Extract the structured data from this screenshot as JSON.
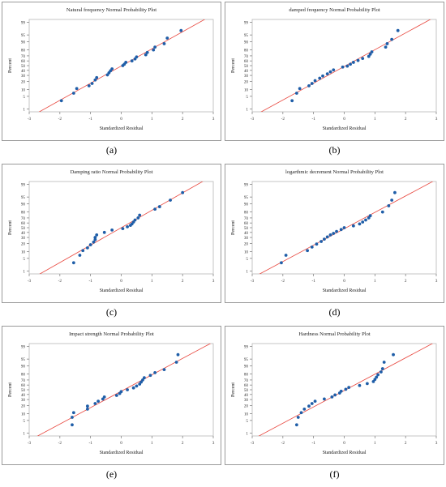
{
  "chart_data": [
    {
      "type": "scatter",
      "label": "(a)",
      "title": "Natural frequency Normal Probability Plot",
      "xlabel": "Standardized Residual",
      "ylabel": "Percent",
      "xticks": [
        "-3",
        "-2",
        "-1",
        "0",
        "1",
        "2",
        "3"
      ],
      "yticks": [
        "1",
        "5",
        "10",
        "20",
        "30",
        "40",
        "50",
        "60",
        "70",
        "80",
        "90",
        "95",
        "99"
      ],
      "x": [
        -1.95,
        -1.55,
        -1.45,
        -1.05,
        -0.95,
        -0.85,
        -0.8,
        -0.45,
        -0.4,
        -0.35,
        -0.3,
        0.05,
        0.1,
        0.15,
        0.35,
        0.45,
        0.5,
        0.8,
        0.85,
        1.05,
        1.1,
        1.4,
        1.5,
        1.95
      ],
      "y": [
        3,
        7,
        11,
        14,
        17,
        22,
        26,
        31,
        35,
        39,
        43,
        50,
        53,
        57,
        60,
        64,
        68,
        72,
        76,
        80,
        84,
        88,
        93,
        97
      ]
    },
    {
      "type": "scatter",
      "label": "(b)",
      "title": "damped frequency Normal Probability Plot",
      "xlabel": "Standardized Residual",
      "ylabel": "Percent",
      "xticks": [
        "-3",
        "-2",
        "-1",
        "0",
        "1",
        "2",
        "3"
      ],
      "yticks": [
        "1",
        "5",
        "10",
        "20",
        "30",
        "40",
        "50",
        "60",
        "70",
        "80",
        "90",
        "95",
        "99"
      ],
      "x": [
        -1.7,
        -1.55,
        -1.45,
        -1.15,
        -1.05,
        -0.95,
        -0.8,
        -0.7,
        -0.55,
        -0.45,
        -0.35,
        -0.05,
        0.1,
        0.2,
        0.3,
        0.45,
        0.6,
        0.8,
        0.85,
        0.9,
        1.35,
        1.4,
        1.55,
        1.75
      ],
      "y": [
        3,
        7,
        11,
        14,
        17,
        21,
        25,
        29,
        33,
        37,
        41,
        47,
        49,
        53,
        57,
        61,
        65,
        69,
        73,
        77,
        84,
        88,
        92,
        97
      ]
    },
    {
      "type": "scatter",
      "label": "(c)",
      "title": "Damping ratio Normal Probability Plot",
      "xlabel": "Standardized Residual",
      "ylabel": "Percent",
      "xticks": [
        "-3",
        "-2",
        "-1",
        "0",
        "1",
        "2",
        "3"
      ],
      "yticks": [
        "1",
        "5",
        "10",
        "20",
        "30",
        "40",
        "50",
        "60",
        "70",
        "80",
        "90",
        "95",
        "99"
      ],
      "x": [
        -1.55,
        -1.35,
        -1.25,
        -1.1,
        -1.0,
        -0.9,
        -0.85,
        -0.85,
        -0.8,
        -0.55,
        -0.3,
        0.05,
        0.2,
        0.3,
        0.35,
        0.4,
        0.45,
        0.55,
        0.6,
        1.1,
        1.25,
        1.6,
        2.0
      ],
      "y": [
        3,
        7,
        11,
        14,
        18,
        22,
        26,
        30,
        35,
        40,
        45,
        48,
        52,
        55,
        58,
        62,
        66,
        70,
        75,
        84,
        87,
        93,
        97
      ]
    },
    {
      "type": "scatter",
      "label": "(d)",
      "title": "logarthmic decrement Normal Probability Plot",
      "xlabel": "Standardized Residual",
      "ylabel": "Percent",
      "xticks": [
        "-3",
        "-2",
        "-1",
        "0",
        "1",
        "2",
        "3"
      ],
      "yticks": [
        "1",
        "5",
        "10",
        "20",
        "30",
        "40",
        "50",
        "60",
        "70",
        "80",
        "90",
        "95",
        "99"
      ],
      "x": [
        -2.05,
        -1.9,
        -1.2,
        -1.05,
        -0.9,
        -0.75,
        -0.65,
        -0.55,
        -0.45,
        -0.35,
        -0.25,
        -0.1,
        0.0,
        0.3,
        0.5,
        0.6,
        0.7,
        0.8,
        0.85,
        1.25,
        1.45,
        1.55,
        1.65
      ],
      "y": [
        3,
        7,
        11,
        15,
        19,
        23,
        27,
        31,
        35,
        38,
        42,
        46,
        50,
        54,
        58,
        62,
        66,
        70,
        74,
        80,
        88,
        93,
        97
      ]
    },
    {
      "type": "scatter",
      "label": "(e)",
      "title": "Impact strength Normal Probability Plot",
      "xlabel": "Standardized Residual",
      "ylabel": "Percent",
      "xticks": [
        "-3",
        "-2",
        "-1",
        "0",
        "1",
        "2",
        "3"
      ],
      "yticks": [
        "1",
        "5",
        "10",
        "20",
        "30",
        "40",
        "50",
        "60",
        "70",
        "80",
        "90",
        "95",
        "99"
      ],
      "x": [
        -1.6,
        -1.6,
        -1.55,
        -1.1,
        -1.1,
        -0.85,
        -0.75,
        -0.6,
        -0.55,
        -0.15,
        -0.05,
        0.0,
        0.2,
        0.4,
        0.5,
        0.6,
        0.65,
        0.7,
        0.75,
        0.95,
        1.1,
        1.4,
        1.8,
        1.85
      ],
      "y": [
        3,
        7,
        11,
        15,
        19,
        23,
        27,
        31,
        35,
        38,
        42,
        46,
        50,
        54,
        58,
        62,
        66,
        70,
        74,
        78,
        82,
        86,
        93,
        97
      ]
    },
    {
      "type": "scatter",
      "label": "(f)",
      "title": "Hardness Normal Probability Plot",
      "xlabel": "Standardized Residual",
      "ylabel": "Percent",
      "xticks": [
        "-3",
        "-2",
        "-1",
        "0",
        "1",
        "2",
        "3"
      ],
      "yticks": [
        "1",
        "5",
        "10",
        "20",
        "30",
        "40",
        "50",
        "60",
        "70",
        "80",
        "90",
        "95",
        "99"
      ],
      "x": [
        -1.55,
        -1.5,
        -1.4,
        -1.3,
        -1.15,
        -1.05,
        -0.95,
        -0.65,
        -0.4,
        -0.3,
        -0.15,
        -0.1,
        0.05,
        0.15,
        0.5,
        0.75,
        0.95,
        1.0,
        1.05,
        1.1,
        1.2,
        1.25,
        1.3,
        1.6
      ],
      "y": [
        3,
        7,
        11,
        15,
        19,
        23,
        27,
        31,
        35,
        39,
        43,
        47,
        51,
        55,
        59,
        63,
        67,
        71,
        75,
        79,
        83,
        87,
        93,
        97
      ]
    }
  ]
}
